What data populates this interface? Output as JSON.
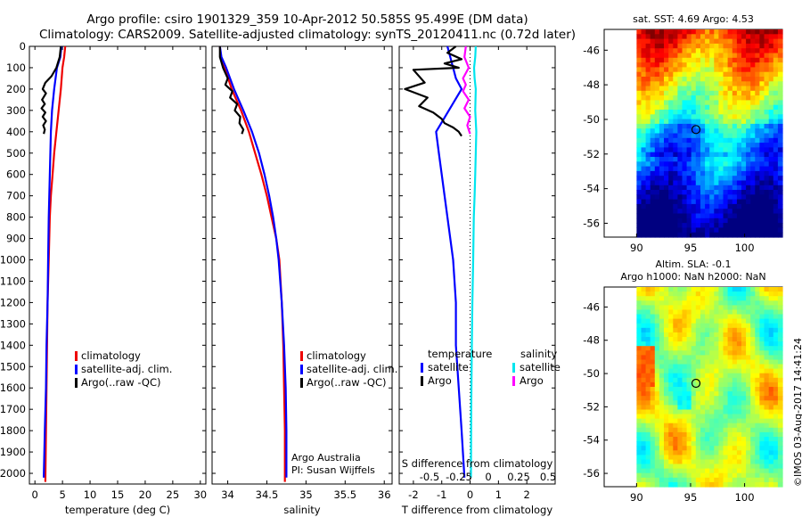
{
  "header": {
    "line1": "Argo profile: csiro 1901329_359 10-Apr-2012 50.585S 95.499E (DM data)",
    "line2": "Climatology: CARS2009. Satellite-adjusted climatology: synTS_20120411.nc (0.72d later)"
  },
  "credits": {
    "institution": "Argo Australia",
    "pi": "PI: Susan Wijffels"
  },
  "footer": {
    "timestamp": "©IMOS 03-Aug-2017 14:41:24"
  },
  "colors": {
    "climatology": "#ee0000",
    "satellite": "#0000ff",
    "argo": "#000000",
    "satellite_s": "#00e5ee",
    "argo_s": "#ff00ff",
    "zero_line": "#000000"
  },
  "chart_data": [
    {
      "id": "temperature",
      "type": "line",
      "xlabel": "temperature (deg C)",
      "xlim": [
        -1,
        31
      ],
      "ylim": [
        2050,
        0
      ],
      "xticks": [
        0,
        5,
        10,
        15,
        20,
        25,
        30
      ],
      "yticks": [
        0,
        100,
        200,
        300,
        400,
        500,
        600,
        700,
        800,
        900,
        1000,
        1100,
        1200,
        1300,
        1400,
        1500,
        1600,
        1700,
        1800,
        1900,
        2000
      ],
      "legend": [
        "climatology",
        "satellite-adj. clim.",
        "Argo(..raw -QC)"
      ],
      "series": [
        {
          "name": "climatology",
          "color": "climatology",
          "x": [
            5.5,
            5.3,
            5.0,
            4.7,
            4.3,
            3.9,
            3.5,
            3.2,
            2.9,
            2.7,
            2.5,
            2.3,
            2.2,
            2.1,
            2.0,
            1.9
          ],
          "y": [
            0,
            50,
            100,
            200,
            300,
            400,
            500,
            600,
            700,
            800,
            1000,
            1200,
            1400,
            1600,
            1800,
            2040
          ]
        },
        {
          "name": "satellite-adj. clim.",
          "color": "satellite",
          "x": [
            4.8,
            4.6,
            4.0,
            3.5,
            3.1,
            2.9,
            2.8,
            2.7,
            2.6,
            2.5,
            2.4,
            2.3,
            2.1,
            2.0,
            1.8,
            1.6
          ],
          "y": [
            0,
            50,
            100,
            200,
            300,
            400,
            500,
            600,
            700,
            800,
            1000,
            1200,
            1400,
            1600,
            1800,
            2020
          ]
        },
        {
          "name": "Argo(..raw -QC)",
          "color": "argo",
          "x": [
            4.7,
            4.5,
            3.9,
            3.0,
            1.9,
            1.4,
            2.0,
            1.3,
            1.8,
            1.2,
            1.9,
            1.4,
            2.0,
            1.5,
            1.8,
            1.6
          ],
          "y": [
            0,
            50,
            100,
            140,
            170,
            200,
            220,
            250,
            270,
            290,
            310,
            330,
            350,
            370,
            390,
            410
          ]
        }
      ]
    },
    {
      "id": "salinity",
      "type": "line",
      "xlabel": "salinity",
      "xlim": [
        33.8,
        36.1
      ],
      "ylim": [
        2050,
        0
      ],
      "xticks": [
        34,
        34.5,
        35,
        35.5,
        36
      ],
      "legend": [
        "climatology",
        "satellite-adj. clim.",
        "Argo(..raw -QC)"
      ],
      "series": [
        {
          "name": "climatology",
          "color": "climatology",
          "x": [
            33.9,
            33.91,
            33.96,
            34.05,
            34.17,
            34.27,
            34.35,
            34.43,
            34.5,
            34.56,
            34.62,
            34.66,
            34.69,
            34.71,
            34.72,
            34.73,
            34.73
          ],
          "y": [
            0,
            50,
            100,
            200,
            300,
            400,
            500,
            600,
            700,
            800,
            900,
            1000,
            1200,
            1400,
            1600,
            1800,
            2040
          ]
        },
        {
          "name": "satellite-adj. clim.",
          "color": "satellite",
          "x": [
            33.9,
            33.92,
            33.98,
            34.08,
            34.2,
            34.31,
            34.4,
            34.47,
            34.53,
            34.58,
            34.62,
            34.65,
            34.69,
            34.72,
            34.74,
            34.75,
            34.75
          ],
          "y": [
            0,
            50,
            100,
            200,
            300,
            400,
            500,
            600,
            700,
            800,
            900,
            1000,
            1200,
            1400,
            1600,
            1800,
            2020
          ]
        },
        {
          "name": "Argo(..raw -QC)",
          "color": "argo",
          "x": [
            33.9,
            33.9,
            33.94,
            34.0,
            33.97,
            34.06,
            34.03,
            34.12,
            34.09,
            34.16,
            34.15,
            34.2,
            34.18
          ],
          "y": [
            0,
            50,
            100,
            150,
            180,
            210,
            240,
            270,
            300,
            330,
            360,
            390,
            410
          ]
        }
      ]
    },
    {
      "id": "difference",
      "type": "line",
      "xlabel": "T difference from climatology",
      "s_axis_label": "S difference from climatology",
      "xlim": [
        -2.5,
        3
      ],
      "ylim": [
        2050,
        0
      ],
      "xticks": [
        -2,
        -1,
        0,
        1,
        2
      ],
      "s_ticks": [
        "-0.5",
        "-0.25",
        "0",
        "0.25",
        "0.5"
      ],
      "legend_headers": [
        "temperature",
        "salinity"
      ],
      "legend": [
        "satellite",
        "Argo",
        "satellite",
        "Argo"
      ],
      "series": [
        {
          "name": "satellite",
          "color": "satellite",
          "x": [
            -0.8,
            -0.7,
            -0.6,
            -0.5,
            -0.3,
            -1.2,
            -1.1,
            -1.0,
            -0.9,
            -0.8,
            -0.6,
            -0.5,
            -0.5,
            -0.4,
            -0.3,
            -0.2
          ],
          "y": [
            0,
            50,
            100,
            150,
            200,
            400,
            500,
            600,
            700,
            800,
            1000,
            1200,
            1400,
            1600,
            1800,
            2020
          ]
        },
        {
          "name": "Argo",
          "color": "argo",
          "x": [
            -0.5,
            -0.8,
            -0.3,
            -0.9,
            -0.4,
            -2.0,
            -1.6,
            -2.3,
            -1.5,
            -1.8,
            -1.3,
            -1.0,
            -0.9,
            -0.6,
            -0.4,
            -0.3
          ],
          "y": [
            0,
            30,
            60,
            80,
            100,
            110,
            170,
            200,
            240,
            280,
            310,
            340,
            360,
            380,
            400,
            420
          ]
        },
        {
          "name": "satellite",
          "color": "satellite_s",
          "x": [
            0.2,
            0.18,
            0.14,
            0.16,
            0.2,
            0.18,
            0.22,
            0.2,
            0.18,
            0.16,
            0.13,
            0.11,
            0.08,
            0.06,
            0.04,
            0.03
          ],
          "y": [
            0,
            50,
            100,
            150,
            200,
            300,
            400,
            500,
            600,
            700,
            800,
            1000,
            1200,
            1400,
            1700,
            2020
          ]
        },
        {
          "name": "Argo",
          "color": "argo_s",
          "x": [
            -0.15,
            -0.2,
            -0.05,
            -0.25,
            -0.15,
            -0.25,
            -0.05,
            -0.2,
            0.0,
            -0.1,
            0.0
          ],
          "y": [
            0,
            50,
            100,
            150,
            180,
            210,
            250,
            290,
            330,
            370,
            410
          ]
        }
      ]
    },
    {
      "id": "sst-map",
      "type": "heatmap",
      "title": "sat. SST: 4.69 Argo: 4.53",
      "xlim": [
        87,
        103.5
      ],
      "ylim": [
        -56.8,
        -44.8
      ],
      "xticks": [
        90,
        95,
        100
      ],
      "yticks": [
        -46,
        -48,
        -50,
        -52,
        -54,
        -56
      ],
      "marker": {
        "lon": 95.499,
        "lat": -50.585
      }
    },
    {
      "id": "sla-map",
      "type": "heatmap",
      "title": "Altim. SLA: -0.1",
      "subtitle": "Argo h1000: NaN h2000: NaN",
      "xlim": [
        87,
        103.5
      ],
      "ylim": [
        -56.8,
        -44.8
      ],
      "xticks": [
        90,
        95,
        100
      ],
      "yticks": [
        -46,
        -48,
        -50,
        -52,
        -54,
        -56
      ],
      "marker": {
        "lon": 95.499,
        "lat": -50.585
      }
    }
  ]
}
